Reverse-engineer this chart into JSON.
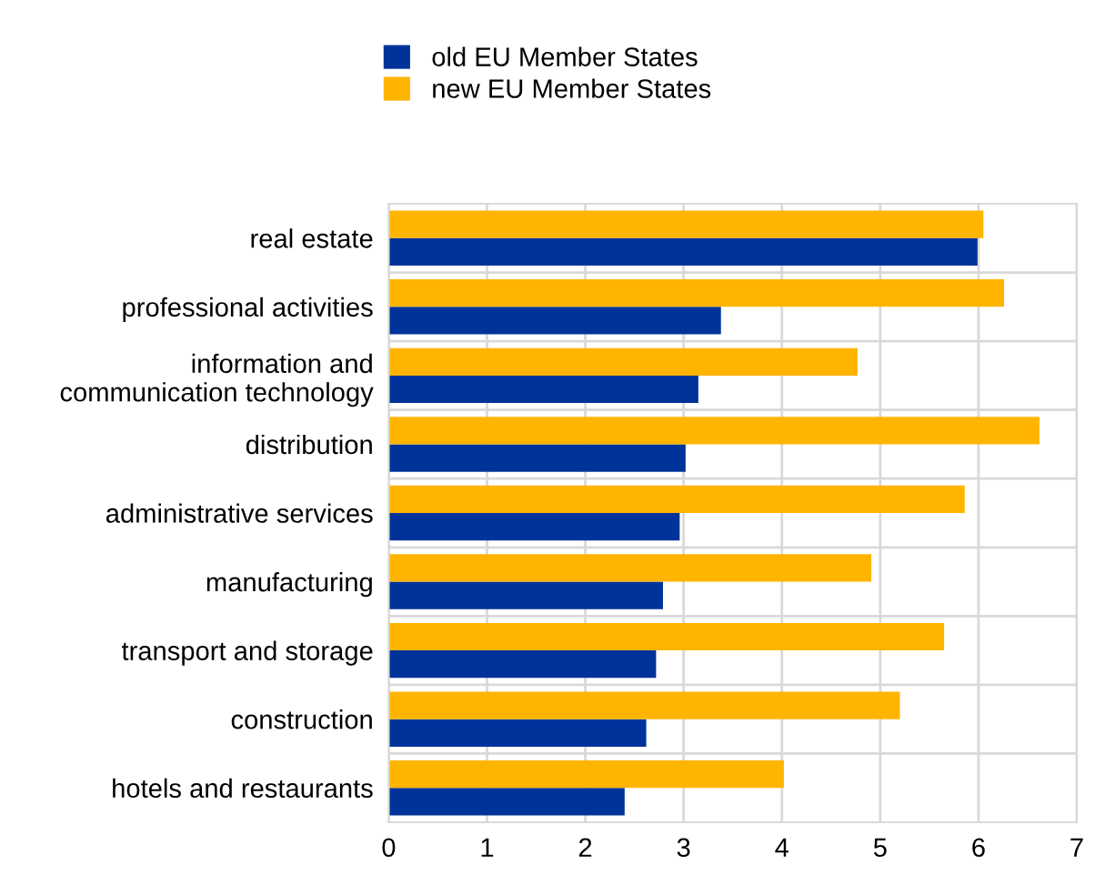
{
  "chart_data": {
    "type": "bar",
    "orientation": "horizontal",
    "categories": [
      "real estate",
      "professional activities",
      "information and\ncommunication technology",
      "distribution",
      "administrative services",
      "manufacturing",
      "transport and storage",
      "construction",
      "hotels and restaurants"
    ],
    "series": [
      {
        "name": "old EU Member States",
        "color": "#003399",
        "values": [
          5.99,
          3.38,
          3.15,
          3.02,
          2.96,
          2.79,
          2.72,
          2.62,
          2.4
        ]
      },
      {
        "name": "new EU Member States",
        "color": "#ffb400",
        "values": [
          6.05,
          6.26,
          4.77,
          6.62,
          5.86,
          4.91,
          5.65,
          5.2,
          4.02
        ]
      }
    ],
    "xlim": [
      0,
      7
    ],
    "xticks": [
      0,
      1,
      2,
      3,
      4,
      5,
      6,
      7
    ],
    "grid": "x",
    "legend": "top"
  }
}
